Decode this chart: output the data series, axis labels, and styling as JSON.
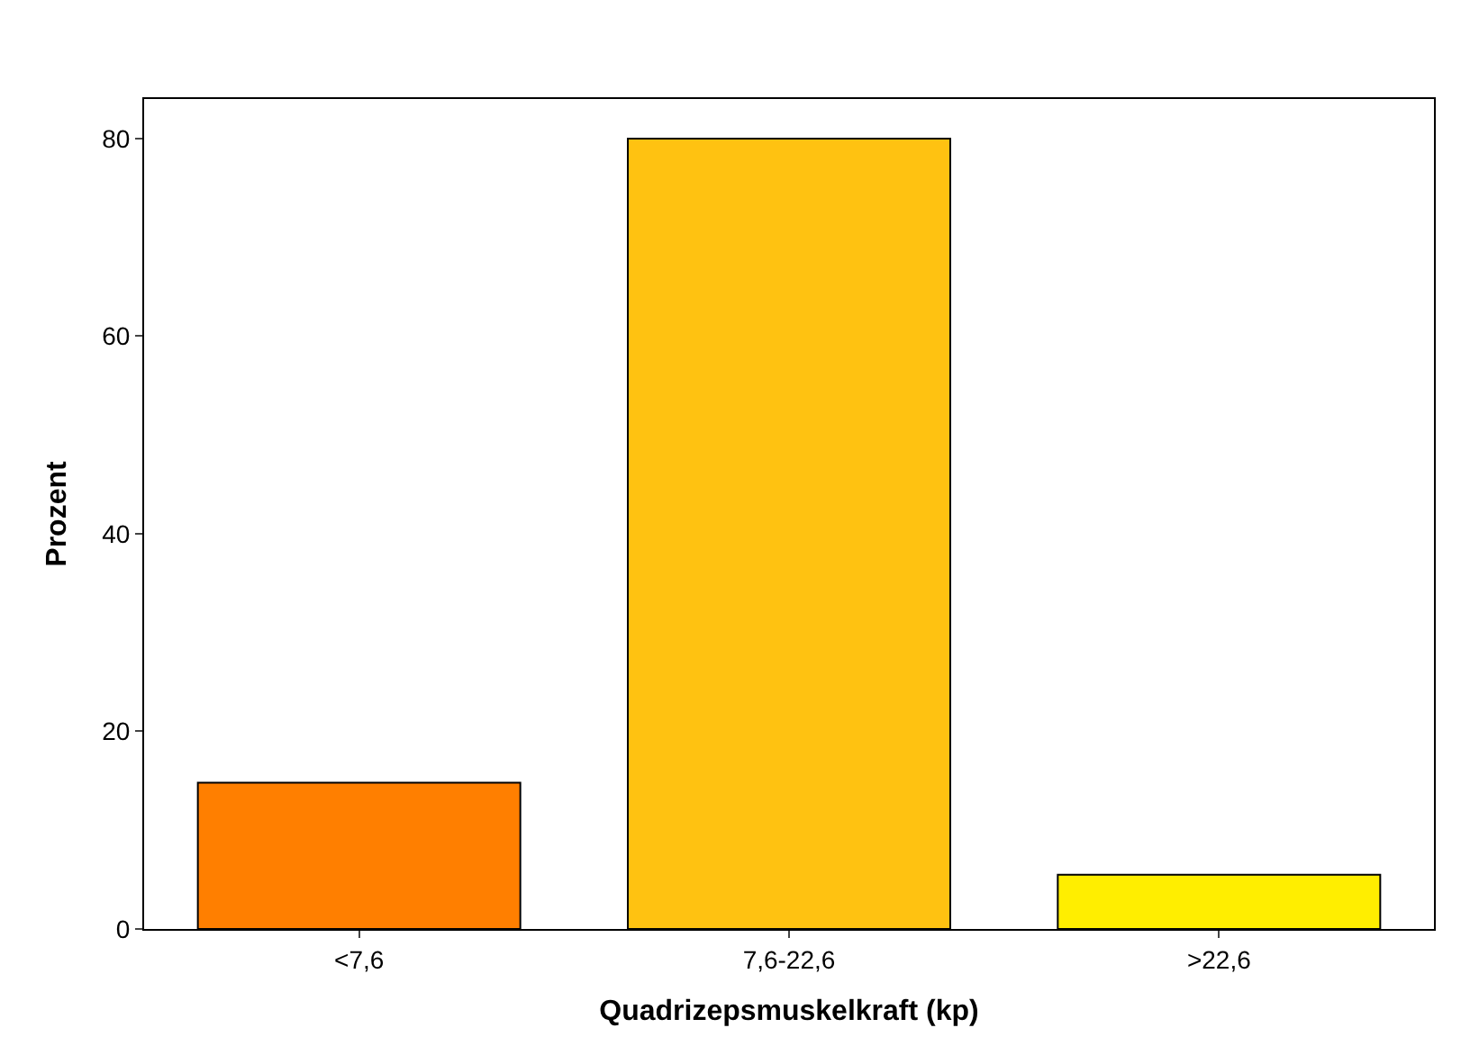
{
  "chart_data": {
    "type": "bar",
    "xlabel": "Quadrizepsmuskelkraft (kp)",
    "ylabel": "Prozent",
    "categories": [
      "<7,6",
      "7,6-22,6",
      ">22,6"
    ],
    "values": [
      14.8,
      80,
      5.5
    ],
    "colors": [
      "#ff7f00",
      "#ffc211",
      "#ffee00"
    ],
    "ylim": [
      0,
      84
    ],
    "yticks": [
      0,
      20,
      40,
      60,
      80
    ]
  }
}
